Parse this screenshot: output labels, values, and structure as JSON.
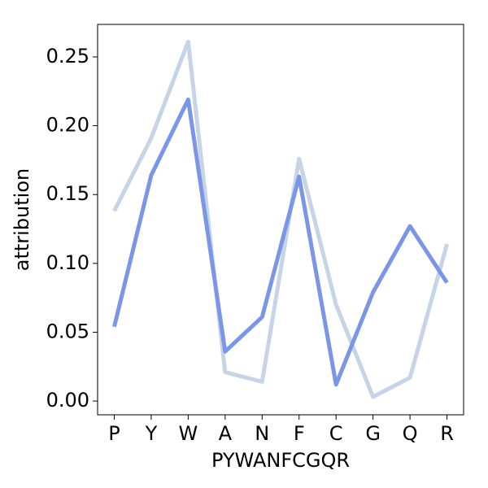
{
  "chart_data": {
    "type": "line",
    "x_label": "PYWANFCGQR",
    "y_label": "attribution",
    "categories": [
      "P",
      "Y",
      "W",
      "A",
      "N",
      "F",
      "C",
      "G",
      "Q",
      "R"
    ],
    "series": [
      {
        "color": "#c6d4e6",
        "values": [
          0.138,
          0.191,
          0.261,
          0.021,
          0.014,
          0.176,
          0.07,
          0.003,
          0.017,
          0.114
        ]
      },
      {
        "color": "#7b96e6",
        "values": [
          0.054,
          0.164,
          0.219,
          0.036,
          0.061,
          0.163,
          0.012,
          0.079,
          0.127,
          0.086
        ]
      }
    ],
    "ylim": [
      -0.01,
      0.2736
    ],
    "yticks": [
      {
        "value": 0,
        "label": "0.00"
      },
      {
        "value": 0.05,
        "label": "0.05"
      },
      {
        "value": 0.1,
        "label": "0.10"
      },
      {
        "value": 0.15,
        "label": "0.15"
      },
      {
        "value": 0.2,
        "label": "0.20"
      },
      {
        "value": 0.25,
        "label": "0.25"
      }
    ]
  }
}
